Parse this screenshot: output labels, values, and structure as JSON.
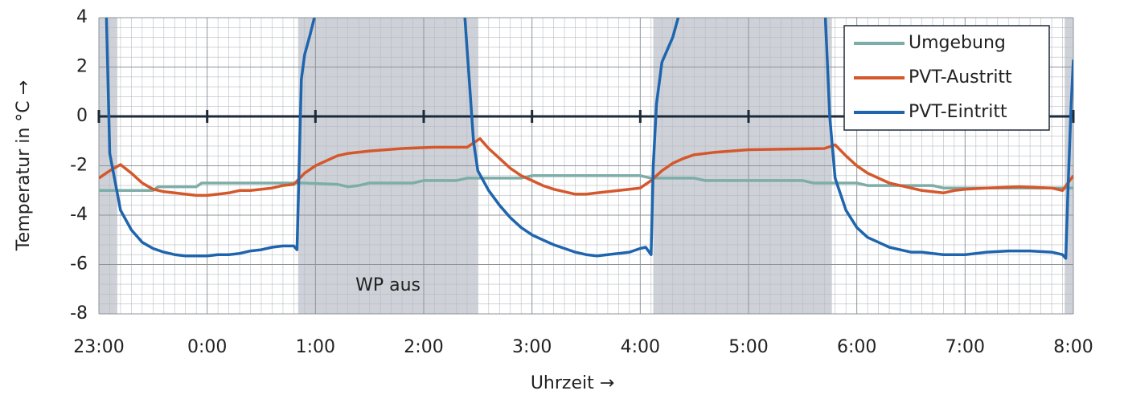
{
  "chart_data": {
    "type": "line",
    "xlabel": "Uhrzeit →",
    "ylabel": "Temperatur in °C →",
    "xlim": [
      23,
      32
    ],
    "ylim": [
      -8,
      4
    ],
    "xticks": [
      {
        "value": 23,
        "label": "23:00"
      },
      {
        "value": 24,
        "label": "0:00"
      },
      {
        "value": 25,
        "label": "1:00"
      },
      {
        "value": 26,
        "label": "2:00"
      },
      {
        "value": 27,
        "label": "3:00"
      },
      {
        "value": 28,
        "label": "4:00"
      },
      {
        "value": 29,
        "label": "5:00"
      },
      {
        "value": 30,
        "label": "6:00"
      },
      {
        "value": 31,
        "label": "7:00"
      },
      {
        "value": 32,
        "label": "8:00"
      }
    ],
    "yticks": [
      -8,
      -6,
      -4,
      -2,
      0,
      2,
      4
    ],
    "grid": true,
    "legend": "upper right",
    "shaded_regions": [
      [
        23,
        23.17
      ],
      [
        24.84,
        26.5
      ],
      [
        28.12,
        29.77
      ],
      [
        31.92,
        32
      ]
    ],
    "shade_color": "#c9cdd4",
    "annotations": [
      {
        "text": "WP aus"
      }
    ],
    "series": [
      {
        "name": "Umgebung",
        "color": "#7dada8",
        "x": [
          23,
          23.5,
          23.55,
          23.9,
          23.95,
          24.85,
          24.9,
          25.2,
          25.3,
          25.4,
          25.5,
          25.9,
          26.0,
          26.3,
          26.4,
          26.9,
          27.0,
          28.0,
          28.1,
          28.5,
          28.6,
          29.5,
          29.6,
          30.0,
          30.1,
          30.7,
          30.8,
          31.5,
          32.0
        ],
        "values": [
          -3,
          -3,
          -2.85,
          -2.85,
          -2.7,
          -2.7,
          -2.7,
          -2.75,
          -2.85,
          -2.8,
          -2.7,
          -2.7,
          -2.6,
          -2.6,
          -2.5,
          -2.5,
          -2.4,
          -2.4,
          -2.5,
          -2.5,
          -2.6,
          -2.6,
          -2.7,
          -2.7,
          -2.8,
          -2.8,
          -2.9,
          -2.9,
          -2.9
        ]
      },
      {
        "name": "PVT-Austritt",
        "color": "#d4582b",
        "x": [
          23,
          23.1,
          23.2,
          23.3,
          23.4,
          23.5,
          23.6,
          23.7,
          23.8,
          23.9,
          24.0,
          24.1,
          24.2,
          24.3,
          24.4,
          24.5,
          24.6,
          24.7,
          24.8,
          24.9,
          25.0,
          25.1,
          25.2,
          25.3,
          25.5,
          25.8,
          26.1,
          26.4,
          26.52,
          26.6,
          26.7,
          26.8,
          26.9,
          27.0,
          27.1,
          27.2,
          27.3,
          27.4,
          27.5,
          27.6,
          27.7,
          27.8,
          27.9,
          28.0,
          28.1,
          28.2,
          28.3,
          28.4,
          28.5,
          28.7,
          29.0,
          29.4,
          29.7,
          29.8,
          29.9,
          30.0,
          30.1,
          30.2,
          30.3,
          30.4,
          30.5,
          30.6,
          30.7,
          30.8,
          30.9,
          31.0,
          31.2,
          31.5,
          31.8,
          31.9,
          32.0
        ],
        "values": [
          -2.5,
          -2.2,
          -1.95,
          -2.3,
          -2.7,
          -2.95,
          -3.05,
          -3.1,
          -3.15,
          -3.2,
          -3.2,
          -3.15,
          -3.1,
          -3.0,
          -3.0,
          -2.95,
          -2.9,
          -2.8,
          -2.75,
          -2.3,
          -2.0,
          -1.8,
          -1.6,
          -1.5,
          -1.4,
          -1.3,
          -1.25,
          -1.25,
          -0.9,
          -1.3,
          -1.7,
          -2.1,
          -2.4,
          -2.6,
          -2.8,
          -2.95,
          -3.05,
          -3.15,
          -3.15,
          -3.1,
          -3.05,
          -3.0,
          -2.95,
          -2.9,
          -2.6,
          -2.2,
          -1.9,
          -1.7,
          -1.55,
          -1.45,
          -1.35,
          -1.32,
          -1.3,
          -1.15,
          -1.6,
          -2.0,
          -2.3,
          -2.5,
          -2.7,
          -2.8,
          -2.9,
          -3.0,
          -3.05,
          -3.1,
          -3.0,
          -2.95,
          -2.9,
          -2.85,
          -2.9,
          -3.0,
          -2.4
        ]
      },
      {
        "name": "PVT-Eintritt",
        "color": "#1f65ae",
        "x": [
          23.07,
          23.1,
          23.2,
          23.3,
          23.4,
          23.5,
          23.6,
          23.7,
          23.8,
          23.9,
          24.0,
          24.1,
          24.2,
          24.3,
          24.4,
          24.5,
          24.6,
          24.7,
          24.8,
          24.83,
          24.87,
          24.9,
          24.95,
          24.99,
          25.1,
          26.38,
          26.42,
          26.46,
          26.5,
          26.6,
          26.7,
          26.8,
          26.9,
          27.0,
          27.1,
          27.2,
          27.3,
          27.4,
          27.5,
          27.6,
          27.7,
          27.8,
          27.9,
          28.0,
          28.05,
          28.1,
          28.12,
          28.15,
          28.2,
          28.3,
          28.35,
          28.5,
          29.71,
          29.75,
          29.8,
          29.9,
          30.0,
          30.1,
          30.2,
          30.3,
          30.4,
          30.5,
          30.6,
          30.7,
          30.8,
          30.9,
          31.0,
          31.1,
          31.2,
          31.4,
          31.6,
          31.8,
          31.9,
          31.93,
          31.95,
          31.98,
          32.0
        ],
        "values": [
          4,
          -1.5,
          -3.8,
          -4.6,
          -5.1,
          -5.35,
          -5.5,
          -5.6,
          -5.65,
          -5.65,
          -5.65,
          -5.6,
          -5.6,
          -5.55,
          -5.45,
          -5.4,
          -5.3,
          -5.25,
          -5.25,
          -5.4,
          1.5,
          2.5,
          3.3,
          4,
          null,
          4,
          1.5,
          -1.0,
          -2.2,
          -3.0,
          -3.6,
          -4.1,
          -4.5,
          -4.8,
          -5.0,
          -5.2,
          -5.35,
          -5.5,
          -5.6,
          -5.65,
          -5.6,
          -5.55,
          -5.5,
          -5.35,
          -5.3,
          -5.6,
          -2,
          0.5,
          2.2,
          3.2,
          4,
          null,
          4,
          0,
          -2.5,
          -3.8,
          -4.5,
          -4.9,
          -5.1,
          -5.3,
          -5.4,
          -5.5,
          -5.5,
          -5.55,
          -5.6,
          -5.6,
          -5.6,
          -5.55,
          -5.5,
          -5.45,
          -5.45,
          -5.5,
          -5.6,
          -5.75,
          -3,
          0.5,
          2.3
        ]
      }
    ]
  }
}
